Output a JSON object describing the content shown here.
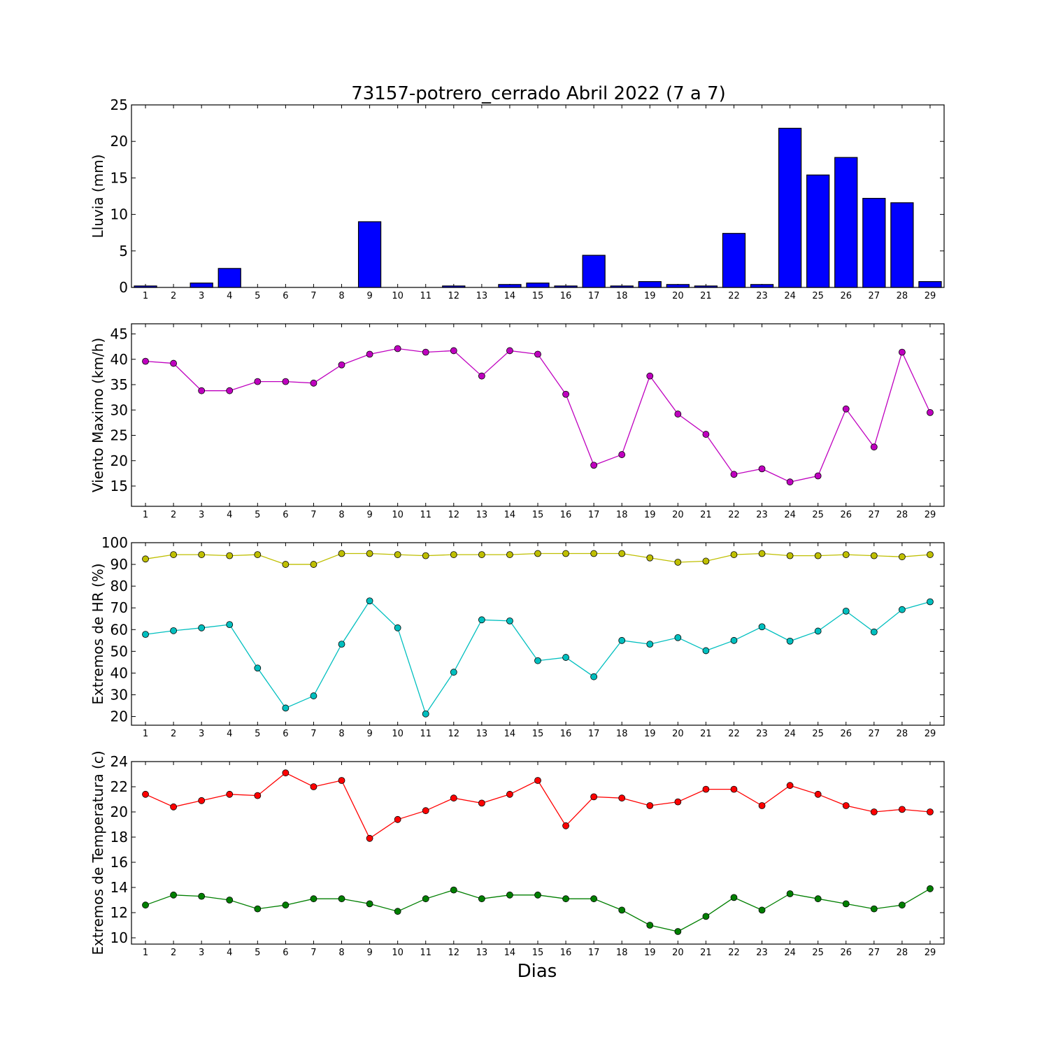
{
  "figure": {
    "title": "73157-potrero_cerrado Abril 2022  (7 a 7)",
    "xlabel": "Dias"
  },
  "chart_data": [
    {
      "type": "bar",
      "ylabel": "Lluvia (mm)",
      "ylim": [
        0,
        25
      ],
      "yticks": [
        0,
        5,
        10,
        15,
        20,
        25
      ],
      "categories": [
        1,
        2,
        3,
        4,
        5,
        6,
        7,
        8,
        9,
        10,
        11,
        12,
        13,
        14,
        15,
        16,
        17,
        18,
        19,
        20,
        21,
        22,
        23,
        24,
        25,
        26,
        27,
        28,
        29
      ],
      "series": [
        {
          "color": "#0000ff",
          "values": [
            0.2,
            0,
            0.6,
            2.6,
            0,
            0,
            0,
            0,
            9.0,
            0,
            0,
            0.2,
            0,
            0.4,
            0.6,
            0.2,
            4.4,
            0.2,
            0.8,
            0.4,
            0.2,
            7.4,
            0.4,
            21.8,
            15.4,
            17.8,
            12.2,
            11.6,
            0.8
          ]
        }
      ]
    },
    {
      "type": "line",
      "ylabel": "Viento Maximo (km/h)",
      "ylim": [
        11,
        47
      ],
      "yticks": [
        15,
        20,
        25,
        30,
        35,
        40,
        45
      ],
      "x": [
        1,
        2,
        3,
        4,
        5,
        6,
        7,
        8,
        9,
        10,
        11,
        12,
        13,
        14,
        15,
        16,
        17,
        18,
        19,
        20,
        21,
        22,
        23,
        24,
        25,
        26,
        27,
        28,
        29
      ],
      "series": [
        {
          "color": "#bf00bf",
          "values": [
            39.6,
            39.2,
            33.8,
            33.8,
            35.6,
            35.6,
            35.3,
            38.9,
            41.0,
            42.1,
            41.4,
            41.7,
            36.7,
            41.7,
            41.0,
            33.1,
            19.1,
            21.2,
            36.7,
            29.2,
            25.2,
            17.3,
            18.4,
            15.8,
            17.0,
            30.2,
            22.7,
            41.4,
            29.5
          ]
        }
      ]
    },
    {
      "type": "line",
      "ylabel": "Extremos de HR (%)",
      "ylim": [
        16,
        100
      ],
      "yticks": [
        20,
        30,
        40,
        50,
        60,
        70,
        80,
        90,
        100
      ],
      "x": [
        1,
        2,
        3,
        4,
        5,
        6,
        7,
        8,
        9,
        10,
        11,
        12,
        13,
        14,
        15,
        16,
        17,
        18,
        19,
        20,
        21,
        22,
        23,
        24,
        25,
        26,
        27,
        28,
        29
      ],
      "series": [
        {
          "color": "#bfbf00",
          "values": [
            92.5,
            94.5,
            94.5,
            94,
            94.5,
            90,
            90,
            95,
            95,
            94.5,
            94,
            94.5,
            94.5,
            94.5,
            95,
            95,
            95,
            95,
            93,
            91,
            91.5,
            94.5,
            95,
            94,
            94,
            94.5,
            94,
            93.5,
            94.5
          ]
        },
        {
          "color": "#00bfbf",
          "values": [
            57.8,
            59.5,
            60.8,
            62.3,
            42.3,
            23.9,
            29.5,
            53.3,
            73.2,
            60.8,
            21.2,
            40.4,
            64.5,
            64.0,
            45.7,
            47.2,
            38.3,
            55.0,
            53.3,
            56.3,
            50.3,
            55.0,
            61.3,
            54.7,
            59.3,
            68.5,
            58.9,
            69.2,
            72.8
          ]
        }
      ]
    },
    {
      "type": "line",
      "ylabel": "Extremos de Temperatura (c)",
      "ylim": [
        9.5,
        24
      ],
      "yticks": [
        10,
        12,
        14,
        16,
        18,
        20,
        22,
        24
      ],
      "x": [
        1,
        2,
        3,
        4,
        5,
        6,
        7,
        8,
        9,
        10,
        11,
        12,
        13,
        14,
        15,
        16,
        17,
        18,
        19,
        20,
        21,
        22,
        23,
        24,
        25,
        26,
        27,
        28,
        29
      ],
      "series": [
        {
          "color": "#ff0000",
          "values": [
            21.4,
            20.4,
            20.9,
            21.4,
            21.3,
            23.1,
            22.0,
            22.5,
            17.9,
            19.4,
            20.1,
            21.1,
            20.7,
            21.4,
            22.5,
            18.9,
            21.2,
            21.1,
            20.5,
            20.8,
            21.8,
            21.8,
            20.5,
            22.1,
            21.4,
            20.5,
            20.0,
            20.2,
            20.0
          ]
        },
        {
          "color": "#007f00",
          "values": [
            12.6,
            13.4,
            13.3,
            13.0,
            12.3,
            12.6,
            13.1,
            13.1,
            12.7,
            12.1,
            13.1,
            13.8,
            13.1,
            13.4,
            13.4,
            13.1,
            13.1,
            12.2,
            11.0,
            10.5,
            11.7,
            13.2,
            12.2,
            13.5,
            13.1,
            12.7,
            12.3,
            12.6,
            13.9
          ]
        }
      ]
    }
  ]
}
